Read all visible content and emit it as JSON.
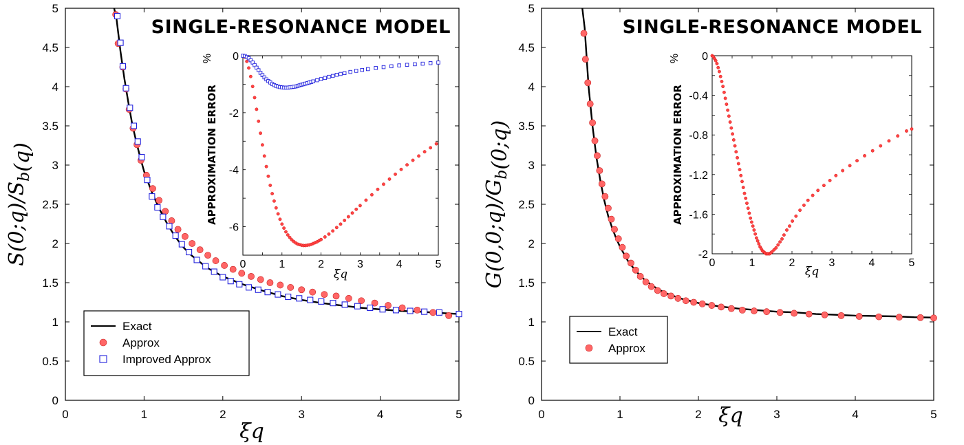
{
  "chart_data": [
    {
      "type": "line",
      "title": "SINGLE-RESONANCE MODEL",
      "xlabel": "ξq",
      "ylabel": "S(0;q)/S_b(q)",
      "xlim": [
        0,
        5
      ],
      "ylim": [
        0,
        5
      ],
      "xticks": [
        "0",
        "1",
        "2",
        "3",
        "4",
        "5"
      ],
      "yticks": [
        "0",
        "0.5",
        "1",
        "1.5",
        "2",
        "2.5",
        "3",
        "3.5",
        "4",
        "4.5",
        "5"
      ],
      "legend": {
        "position": "bottom-left",
        "entries": [
          "Exact",
          "Approx",
          "Improved Approx"
        ]
      },
      "series": [
        {
          "name": "Exact",
          "style": "line",
          "color": "#000000",
          "x": [
            0.62,
            0.65,
            0.7,
            0.75,
            0.8,
            0.85,
            0.9,
            0.95,
            1.0,
            1.1,
            1.2,
            1.3,
            1.4,
            1.5,
            1.6,
            1.8,
            2.0,
            2.25,
            2.5,
            2.75,
            3.0,
            3.25,
            3.5,
            3.75,
            4.0,
            4.25,
            4.5,
            4.75,
            5.0
          ],
          "values": [
            5.0,
            4.86,
            4.45,
            4.1,
            3.8,
            3.52,
            3.3,
            3.1,
            2.92,
            2.65,
            2.43,
            2.24,
            2.08,
            1.95,
            1.85,
            1.69,
            1.58,
            1.48,
            1.4,
            1.33,
            1.28,
            1.24,
            1.21,
            1.18,
            1.16,
            1.14,
            1.13,
            1.115,
            1.1
          ]
        },
        {
          "name": "Approx",
          "style": "markers",
          "marker": "circle",
          "color": "#ff6666",
          "x": [
            0.64,
            0.67,
            0.73,
            0.77,
            0.81,
            0.86,
            0.91,
            0.96,
            1.03,
            1.11,
            1.19,
            1.27,
            1.35,
            1.43,
            1.52,
            1.61,
            1.71,
            1.81,
            1.91,
            2.02,
            2.13,
            2.24,
            2.36,
            2.48,
            2.6,
            2.73,
            2.86,
            3.0,
            3.14,
            3.29,
            3.44,
            3.6,
            3.76,
            3.93,
            4.1,
            4.28,
            4.47,
            4.67,
            4.87
          ],
          "values": [
            4.92,
            4.55,
            4.25,
            3.97,
            3.71,
            3.47,
            3.26,
            3.06,
            2.87,
            2.7,
            2.55,
            2.41,
            2.29,
            2.18,
            2.09,
            2.0,
            1.92,
            1.85,
            1.78,
            1.72,
            1.67,
            1.62,
            1.58,
            1.54,
            1.5,
            1.47,
            1.44,
            1.41,
            1.38,
            1.35,
            1.33,
            1.3,
            1.27,
            1.24,
            1.21,
            1.18,
            1.15,
            1.12,
            1.08
          ]
        },
        {
          "name": "Improved Approx",
          "style": "markers",
          "marker": "square",
          "color": "#2222dd",
          "x": [
            0.66,
            0.7,
            0.73,
            0.77,
            0.82,
            0.87,
            0.92,
            0.97,
            1.04,
            1.1,
            1.17,
            1.24,
            1.32,
            1.4,
            1.48,
            1.57,
            1.67,
            1.78,
            1.89,
            2.0,
            2.1,
            2.21,
            2.33,
            2.45,
            2.57,
            2.7,
            2.83,
            2.97,
            3.11,
            3.25,
            3.4,
            3.55,
            3.71,
            3.87,
            4.03,
            4.2,
            4.38,
            4.56,
            4.75,
            5.0
          ],
          "values": [
            4.9,
            4.56,
            4.26,
            3.98,
            3.73,
            3.5,
            3.3,
            3.1,
            2.81,
            2.6,
            2.46,
            2.34,
            2.22,
            2.1,
            1.99,
            1.89,
            1.79,
            1.71,
            1.64,
            1.57,
            1.52,
            1.48,
            1.44,
            1.41,
            1.38,
            1.35,
            1.32,
            1.3,
            1.28,
            1.26,
            1.24,
            1.22,
            1.2,
            1.18,
            1.16,
            1.15,
            1.14,
            1.13,
            1.12,
            1.1
          ]
        }
      ],
      "inset": {
        "xlabel": "ξq",
        "ylabel": "APPROXIMATION ERROR",
        "ylabel_unit": "%",
        "xlim": [
          0,
          5
        ],
        "ylim": [
          -7,
          0
        ],
        "xticks": [
          "0",
          "1",
          "2",
          "3",
          "4",
          "5"
        ],
        "yticks": [
          "0",
          "-2",
          "-4",
          "-6"
        ],
        "series": [
          {
            "name": "Approx",
            "marker": "circle",
            "color": "#ff4444",
            "x": [
              0,
              0.05,
              0.1,
              0.15,
              0.2,
              0.25,
              0.3,
              0.35,
              0.4,
              0.45,
              0.5,
              0.55,
              0.6,
              0.65,
              0.7,
              0.75,
              0.8,
              0.85,
              0.9,
              0.95,
              1.0,
              1.05,
              1.1,
              1.15,
              1.2,
              1.25,
              1.3,
              1.35,
              1.4,
              1.45,
              1.5,
              1.55,
              1.6,
              1.65,
              1.7,
              1.75,
              1.8,
              1.85,
              1.9,
              1.95,
              2.0,
              2.1,
              2.2,
              2.3,
              2.4,
              2.5,
              2.6,
              2.7,
              2.8,
              2.9,
              3.0,
              3.15,
              3.3,
              3.45,
              3.6,
              3.75,
              3.9,
              4.05,
              4.2,
              4.35,
              4.5,
              4.65,
              4.8,
              4.95
            ],
            "values": [
              0,
              -0.05,
              -0.2,
              -0.43,
              -0.73,
              -1.08,
              -1.47,
              -1.88,
              -2.3,
              -2.72,
              -3.13,
              -3.52,
              -3.89,
              -4.23,
              -4.55,
              -4.84,
              -5.1,
              -5.34,
              -5.55,
              -5.74,
              -5.91,
              -6.05,
              -6.18,
              -6.29,
              -6.38,
              -6.46,
              -6.52,
              -6.57,
              -6.61,
              -6.63,
              -6.65,
              -6.66,
              -6.66,
              -6.65,
              -6.64,
              -6.62,
              -6.59,
              -6.56,
              -6.53,
              -6.49,
              -6.45,
              -6.36,
              -6.26,
              -6.15,
              -6.03,
              -5.91,
              -5.78,
              -5.65,
              -5.52,
              -5.39,
              -5.26,
              -5.07,
              -4.88,
              -4.69,
              -4.51,
              -4.33,
              -4.16,
              -3.99,
              -3.83,
              -3.67,
              -3.52,
              -3.37,
              -3.23,
              -3.09
            ]
          },
          {
            "name": "Improved Approx",
            "marker": "square",
            "color": "#2222dd",
            "x": [
              0,
              0.05,
              0.1,
              0.15,
              0.2,
              0.25,
              0.3,
              0.35,
              0.4,
              0.45,
              0.5,
              0.55,
              0.6,
              0.65,
              0.7,
              0.75,
              0.8,
              0.85,
              0.9,
              0.95,
              1.0,
              1.05,
              1.1,
              1.15,
              1.2,
              1.25,
              1.3,
              1.35,
              1.4,
              1.45,
              1.5,
              1.55,
              1.6,
              1.65,
              1.7,
              1.75,
              1.8,
              1.9,
              2.0,
              2.1,
              2.2,
              2.3,
              2.4,
              2.5,
              2.6,
              2.75,
              2.9,
              3.05,
              3.2,
              3.4,
              3.6,
              3.8,
              4.0,
              4.2,
              4.4,
              4.6,
              4.8,
              5.0
            ],
            "values": [
              0,
              -0.01,
              -0.04,
              -0.09,
              -0.16,
              -0.24,
              -0.33,
              -0.42,
              -0.51,
              -0.6,
              -0.68,
              -0.76,
              -0.83,
              -0.89,
              -0.94,
              -0.99,
              -1.03,
              -1.06,
              -1.08,
              -1.1,
              -1.11,
              -1.12,
              -1.12,
              -1.12,
              -1.11,
              -1.1,
              -1.09,
              -1.08,
              -1.06,
              -1.04,
              -1.02,
              -1.0,
              -0.98,
              -0.96,
              -0.94,
              -0.92,
              -0.9,
              -0.86,
              -0.82,
              -0.78,
              -0.74,
              -0.71,
              -0.67,
              -0.64,
              -0.61,
              -0.57,
              -0.53,
              -0.5,
              -0.47,
              -0.43,
              -0.4,
              -0.37,
              -0.34,
              -0.32,
              -0.3,
              -0.28,
              -0.26,
              -0.24
            ]
          }
        ]
      }
    },
    {
      "type": "line",
      "title": "SINGLE-RESONANCE MODEL",
      "xlabel": "ξq",
      "ylabel": "G(0,0;q)/G_b(0;q)",
      "xlim": [
        0,
        5
      ],
      "ylim": [
        0,
        5
      ],
      "xticks": [
        "0",
        "1",
        "2",
        "3",
        "4",
        "5"
      ],
      "yticks": [
        "0",
        "0.5",
        "1",
        "1.5",
        "2",
        "2.5",
        "3",
        "3.5",
        "4",
        "4.5",
        "5"
      ],
      "legend": {
        "position": "bottom-left",
        "entries": [
          "Exact",
          "Approx"
        ]
      },
      "series": [
        {
          "name": "Exact",
          "style": "line",
          "color": "#000000",
          "x": [
            0.52,
            0.55,
            0.6,
            0.65,
            0.7,
            0.75,
            0.8,
            0.85,
            0.9,
            0.95,
            1.0,
            1.1,
            1.2,
            1.3,
            1.4,
            1.5,
            1.6,
            1.8,
            2.0,
            2.25,
            2.5,
            2.75,
            3.0,
            3.25,
            3.5,
            3.75,
            4.0,
            4.25,
            4.5,
            4.75,
            5.0
          ],
          "values": [
            5.0,
            4.75,
            4.0,
            3.5,
            3.1,
            2.8,
            2.55,
            2.35,
            2.2,
            2.07,
            1.96,
            1.78,
            1.65,
            1.55,
            1.47,
            1.41,
            1.36,
            1.29,
            1.24,
            1.2,
            1.17,
            1.15,
            1.13,
            1.12,
            1.1,
            1.09,
            1.08,
            1.075,
            1.07,
            1.06,
            1.055
          ]
        },
        {
          "name": "Approx",
          "style": "markers",
          "marker": "circle",
          "color": "#ff6666",
          "x": [
            0.54,
            0.56,
            0.59,
            0.62,
            0.65,
            0.68,
            0.71,
            0.74,
            0.77,
            0.81,
            0.85,
            0.89,
            0.93,
            0.98,
            1.03,
            1.08,
            1.14,
            1.2,
            1.26,
            1.33,
            1.4,
            1.48,
            1.56,
            1.65,
            1.74,
            1.84,
            1.94,
            2.05,
            2.17,
            2.29,
            2.42,
            2.56,
            2.71,
            2.87,
            3.04,
            3.22,
            3.41,
            3.61,
            3.82,
            4.05,
            4.3,
            4.56,
            4.83,
            5.0
          ],
          "values": [
            4.68,
            4.35,
            4.05,
            3.78,
            3.54,
            3.31,
            3.12,
            2.93,
            2.76,
            2.6,
            2.45,
            2.31,
            2.18,
            2.06,
            1.95,
            1.84,
            1.75,
            1.66,
            1.58,
            1.51,
            1.45,
            1.4,
            1.36,
            1.33,
            1.3,
            1.27,
            1.25,
            1.23,
            1.21,
            1.19,
            1.17,
            1.15,
            1.14,
            1.13,
            1.12,
            1.11,
            1.1,
            1.09,
            1.08,
            1.07,
            1.065,
            1.06,
            1.055,
            1.05
          ]
        }
      ],
      "inset": {
        "xlabel": "ξq",
        "ylabel": "APPROXIMATION ERROR",
        "ylabel_unit": "%",
        "xlim": [
          0,
          5
        ],
        "ylim": [
          -2,
          0
        ],
        "xticks": [
          "0",
          "1",
          "2",
          "3",
          "4",
          "5"
        ],
        "yticks": [
          "0",
          "-0.4",
          "-0.8",
          "-1.2",
          "-1.6",
          "-2"
        ],
        "series": [
          {
            "name": "Approx",
            "marker": "circle",
            "color": "#ff4444",
            "x": [
              0,
              0.03,
              0.06,
              0.09,
              0.12,
              0.15,
              0.18,
              0.21,
              0.24,
              0.27,
              0.3,
              0.33,
              0.36,
              0.39,
              0.42,
              0.45,
              0.48,
              0.51,
              0.54,
              0.57,
              0.6,
              0.63,
              0.66,
              0.69,
              0.72,
              0.75,
              0.78,
              0.81,
              0.84,
              0.87,
              0.9,
              0.93,
              0.96,
              0.99,
              1.02,
              1.05,
              1.08,
              1.11,
              1.14,
              1.17,
              1.2,
              1.23,
              1.26,
              1.29,
              1.32,
              1.35,
              1.38,
              1.41,
              1.44,
              1.47,
              1.5,
              1.55,
              1.6,
              1.65,
              1.7,
              1.75,
              1.8,
              1.87,
              1.94,
              2.01,
              2.1,
              2.2,
              2.3,
              2.4,
              2.52,
              2.65,
              2.8,
              2.95,
              3.1,
              3.27,
              3.45,
              3.63,
              3.82,
              4.02,
              4.22,
              4.43,
              4.65,
              4.87,
              5.0
            ],
            "values": [
              0,
              -0.01,
              -0.03,
              -0.05,
              -0.08,
              -0.12,
              -0.16,
              -0.21,
              -0.26,
              -0.31,
              -0.37,
              -0.43,
              -0.49,
              -0.55,
              -0.61,
              -0.67,
              -0.73,
              -0.79,
              -0.85,
              -0.91,
              -0.97,
              -1.03,
              -1.09,
              -1.15,
              -1.21,
              -1.27,
              -1.33,
              -1.39,
              -1.44,
              -1.49,
              -1.54,
              -1.59,
              -1.64,
              -1.68,
              -1.72,
              -1.76,
              -1.8,
              -1.84,
              -1.87,
              -1.9,
              -1.93,
              -1.95,
              -1.97,
              -1.98,
              -1.99,
              -2.0,
              -2.0,
              -2.0,
              -2.0,
              -1.99,
              -1.98,
              -1.96,
              -1.94,
              -1.91,
              -1.88,
              -1.85,
              -1.81,
              -1.76,
              -1.72,
              -1.67,
              -1.62,
              -1.56,
              -1.51,
              -1.46,
              -1.41,
              -1.36,
              -1.31,
              -1.26,
              -1.21,
              -1.16,
              -1.11,
              -1.06,
              -1.01,
              -0.96,
              -0.91,
              -0.86,
              -0.81,
              -0.76,
              -0.74
            ]
          }
        ]
      }
    }
  ]
}
